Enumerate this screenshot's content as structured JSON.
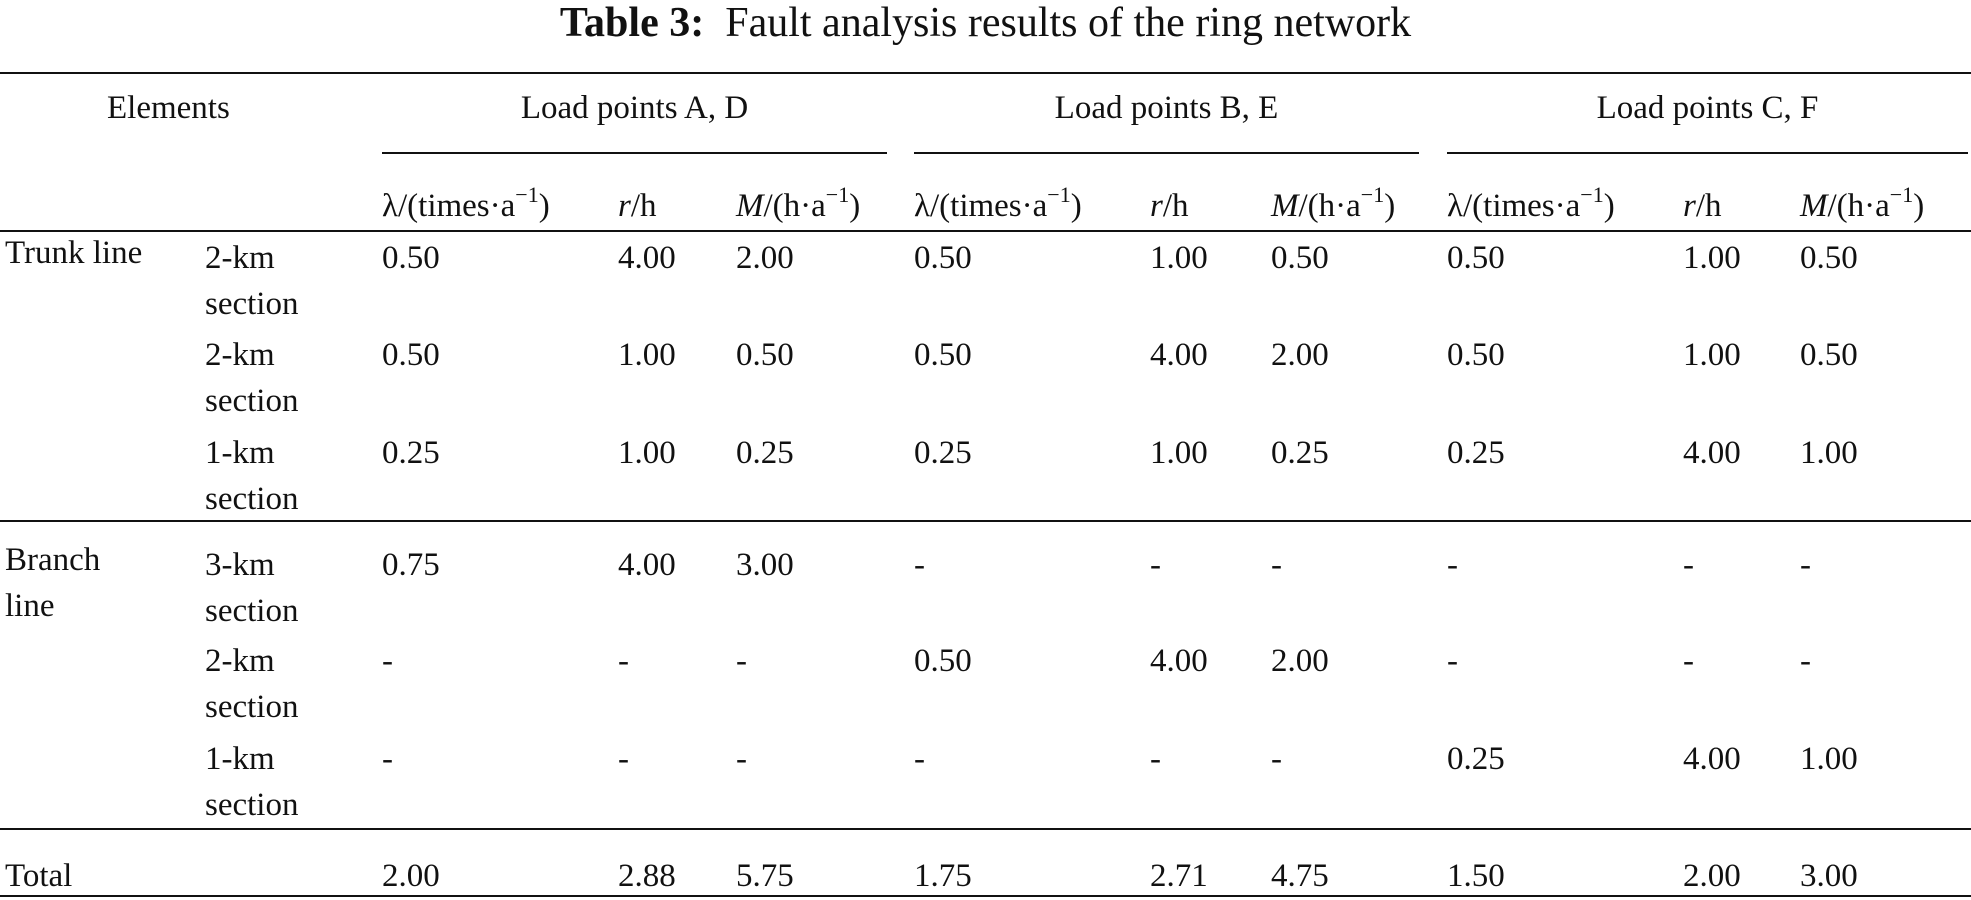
{
  "caption": {
    "label": "Table 3:",
    "text": "Fault analysis results of the ring network"
  },
  "header": {
    "elements": "Elements",
    "groups": [
      "Load points A, D",
      "Load points B, E",
      "Load points C, F"
    ],
    "col_lambda_prefix": "λ/(times·a",
    "col_r_var": "r",
    "col_r_unit": "/h",
    "col_m_var": "M",
    "col_m_unit": "/(h·a",
    "exponent": "−1",
    "close_paren": ")"
  },
  "rows": [
    {
      "category": "Trunk line",
      "element": [
        "2-km",
        "section"
      ],
      "values": [
        "0.50",
        "4.00",
        "2.00",
        "0.50",
        "1.00",
        "0.50",
        "0.50",
        "1.00",
        "0.50"
      ]
    },
    {
      "category": "",
      "element": [
        "2-km",
        "section"
      ],
      "values": [
        "0.50",
        "1.00",
        "0.50",
        "0.50",
        "4.00",
        "2.00",
        "0.50",
        "1.00",
        "0.50"
      ]
    },
    {
      "category": "",
      "element": [
        "1-km",
        "section"
      ],
      "values": [
        "0.25",
        "1.00",
        "0.25",
        "0.25",
        "1.00",
        "0.25",
        "0.25",
        "4.00",
        "1.00"
      ]
    },
    {
      "category": [
        "Branch",
        "line"
      ],
      "element": [
        "3-km",
        "section"
      ],
      "values": [
        "0.75",
        "4.00",
        "3.00",
        "-",
        "-",
        "-",
        "-",
        "-",
        "-"
      ]
    },
    {
      "category": "",
      "element": [
        "2-km",
        "section"
      ],
      "values": [
        "-",
        "-",
        "-",
        "0.50",
        "4.00",
        "2.00",
        "-",
        "-",
        "-"
      ]
    },
    {
      "category": "",
      "element": [
        "1-km",
        "section"
      ],
      "values": [
        "-",
        "-",
        "-",
        "-",
        "-",
        "-",
        "0.25",
        "4.00",
        "1.00"
      ]
    }
  ],
  "total": {
    "label": "Total",
    "values": [
      "2.00",
      "2.88",
      "5.75",
      "1.75",
      "2.71",
      "4.75",
      "1.50",
      "2.00",
      "3.00"
    ]
  }
}
